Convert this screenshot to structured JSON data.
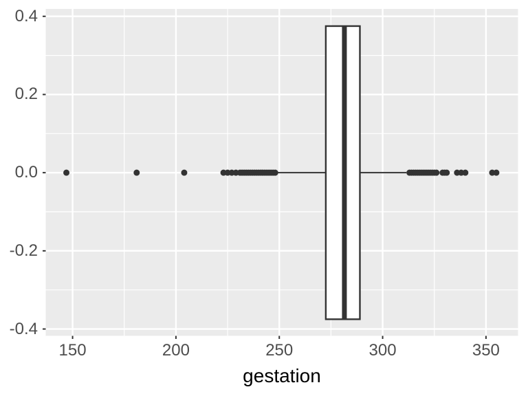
{
  "chart_data": {
    "type": "boxplot",
    "orientation": "horizontal",
    "title": "",
    "xlabel": "gestation",
    "ylabel": "",
    "x_axis": {
      "ticks": [
        150,
        200,
        250,
        300,
        350
      ],
      "tick_labels": [
        "150",
        "200",
        "250",
        "300",
        "350"
      ],
      "minor_ticks": [
        175,
        225,
        275,
        325
      ],
      "range": [
        137.0,
        365.5
      ],
      "grid": true
    },
    "y_axis": {
      "ticks": [
        0.4,
        0.2,
        0.0,
        -0.2,
        -0.4
      ],
      "tick_labels": [
        "0.4",
        "0.2",
        "0.0",
        "-0.2",
        "-0.4"
      ],
      "minor_ticks": [
        0.3,
        0.1,
        -0.1,
        -0.3
      ],
      "range": [
        -0.4175,
        0.4189
      ],
      "grid": true
    },
    "box": {
      "center_y": 0,
      "half_height": 0.375,
      "q1": 272.5,
      "median": 281.5,
      "q3": 289,
      "whisker_low": 249,
      "whisker_high": 311.5
    },
    "outliers": [
      147,
      181,
      204,
      223,
      225,
      227,
      229,
      231,
      232,
      233,
      234,
      235,
      236,
      237,
      238,
      239,
      240,
      241,
      242,
      243,
      244,
      245,
      246,
      247,
      248,
      313,
      314,
      315,
      316,
      317,
      318,
      319,
      320,
      321,
      322,
      323,
      324,
      325,
      326,
      329,
      330,
      331,
      336,
      338,
      340,
      353,
      355
    ],
    "style": {
      "panel_bg": "#EBEBEB",
      "grid_color": "#FFFFFF",
      "box_stroke": "#333333",
      "box_fill": "#FFFFFF",
      "point_color": "#333333",
      "tick_mark_color": "#333333",
      "tick_label_color": "#4D4D4D",
      "axis_title_color": "#000000"
    }
  }
}
